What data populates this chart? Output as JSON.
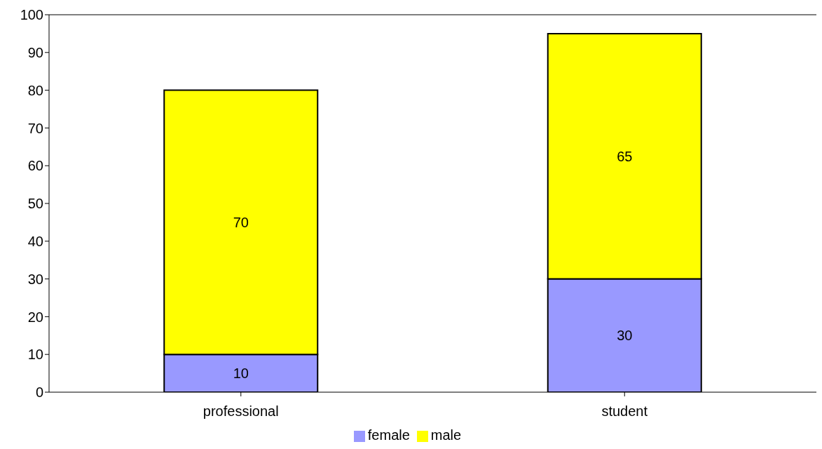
{
  "chart_data": {
    "type": "bar",
    "stacked": true,
    "categories": [
      "professional",
      "student"
    ],
    "series": [
      {
        "name": "female",
        "color": "#9999ff",
        "values": [
          10,
          30
        ]
      },
      {
        "name": "male",
        "color": "#ffff00",
        "values": [
          70,
          65
        ]
      }
    ],
    "ylim": [
      0,
      100
    ],
    "yticks": [
      0,
      10,
      20,
      30,
      40,
      50,
      60,
      70,
      80,
      90,
      100
    ],
    "data_labels": true,
    "legend": "bottom"
  }
}
